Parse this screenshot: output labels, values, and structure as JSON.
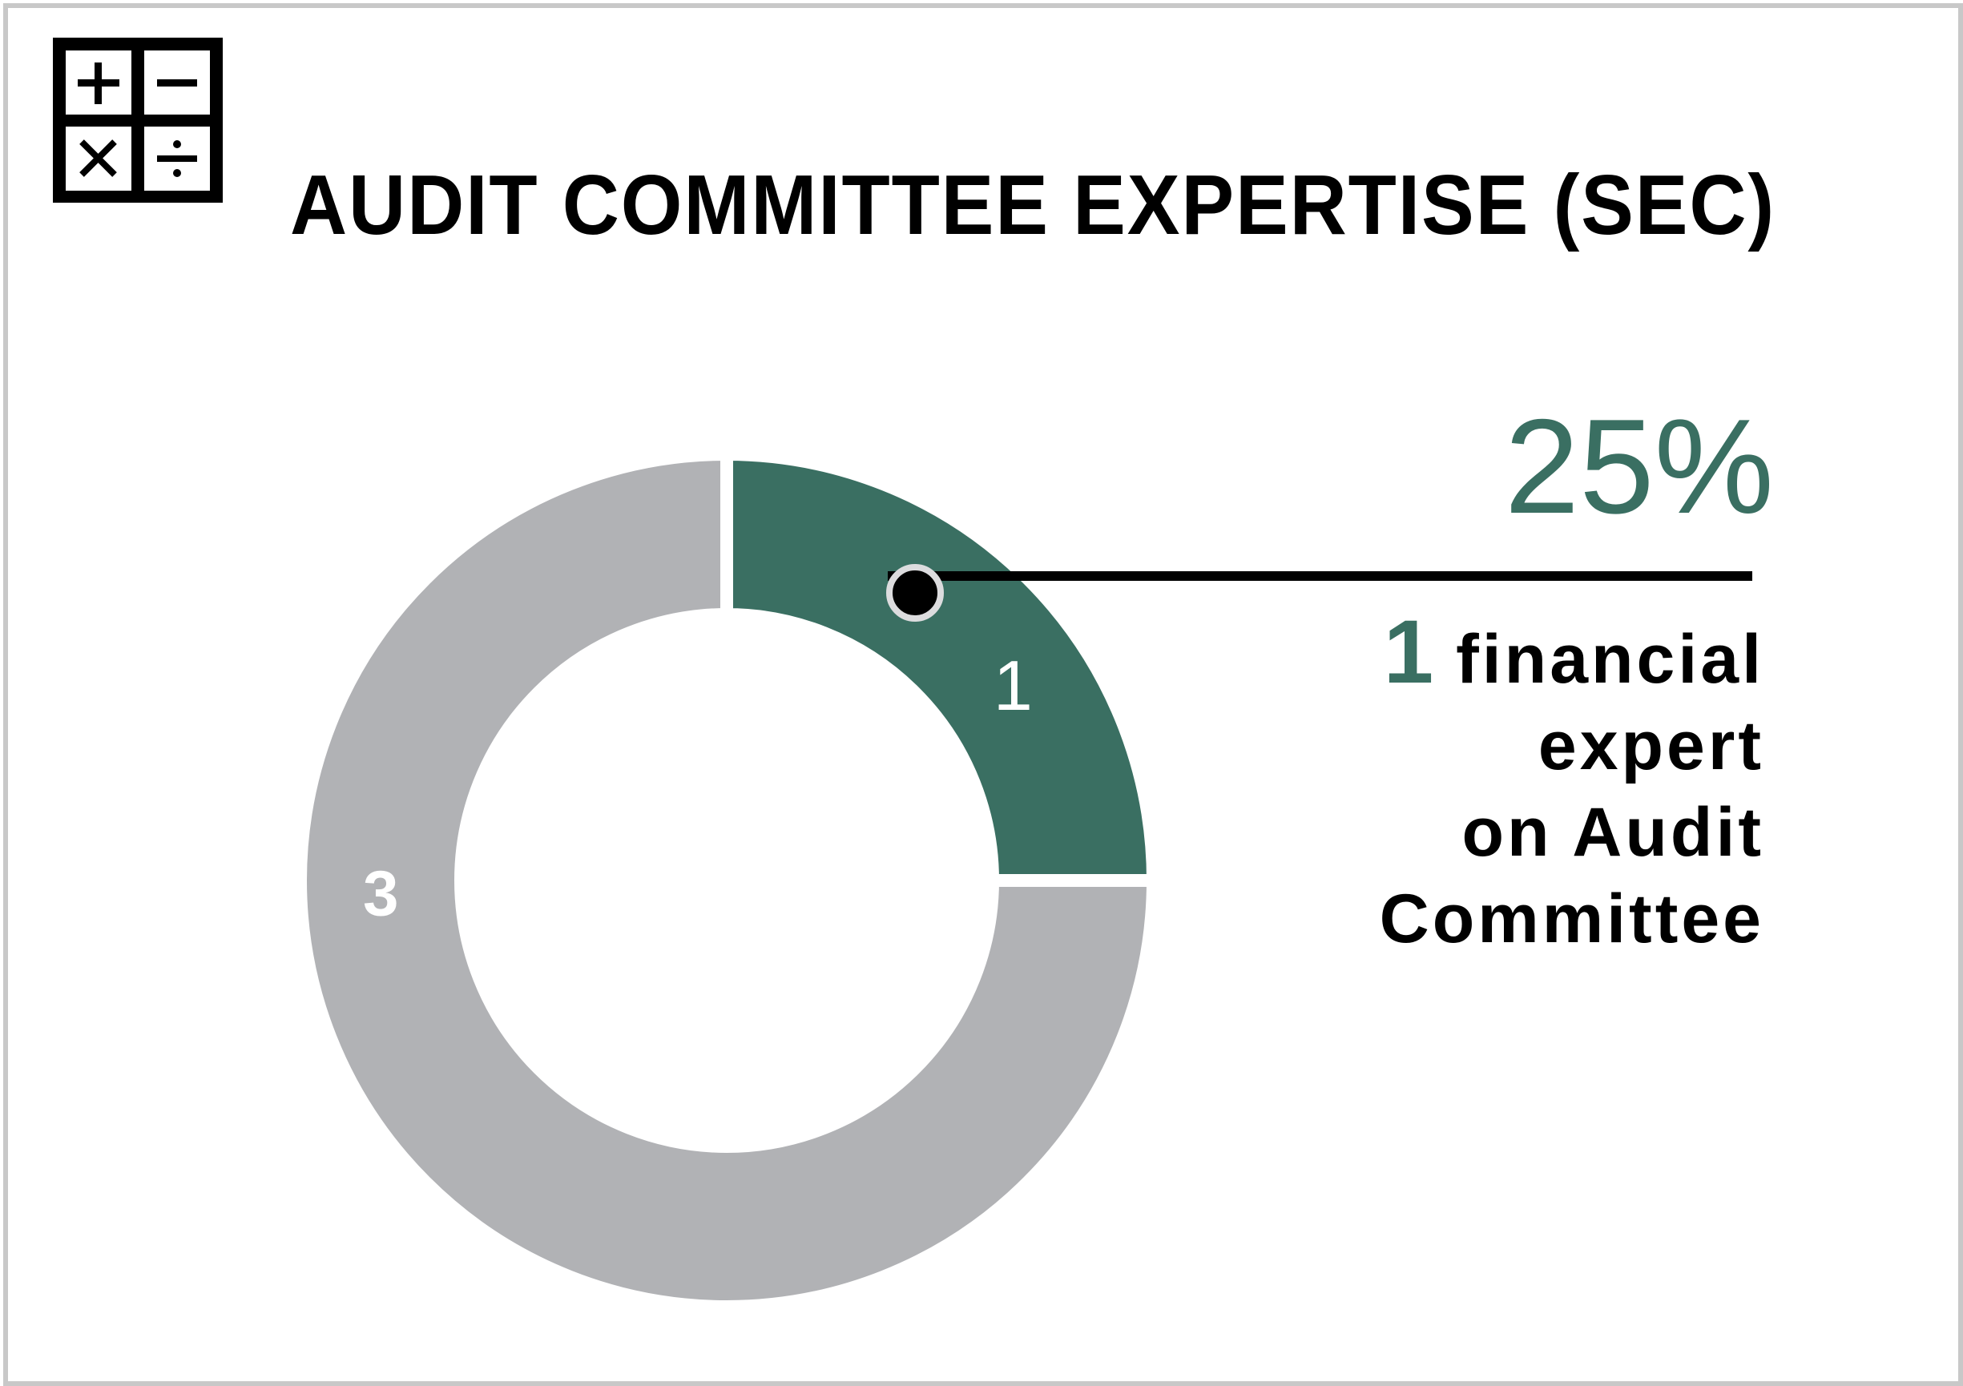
{
  "title": "AUDIT COMMITTEE EXPERTISE (SEC)",
  "icon": "calculator-operators-icon",
  "highlight": {
    "percent": "25%",
    "count": "1",
    "lines": [
      "financial",
      "expert",
      "on Audit",
      "Committee"
    ]
  },
  "colors": {
    "accent": "#3a6f62",
    "rest": "#b1b2b5",
    "callout": "#000000"
  },
  "chart_data": {
    "type": "pie",
    "subtype": "donut",
    "values": [
      1,
      3
    ],
    "data_labels": [
      "1",
      "3"
    ],
    "colors": [
      "#3a6f62",
      "#b1b2b5"
    ],
    "start_angle": "12 o'clock, clockwise"
  }
}
